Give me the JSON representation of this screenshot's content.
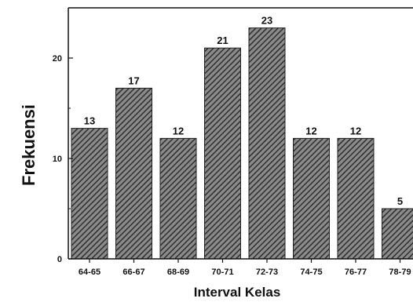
{
  "chart_data": {
    "type": "bar",
    "categories": [
      "64-65",
      "66-67",
      "68-69",
      "70-71",
      "72-73",
      "74-75",
      "76-77",
      "78-79"
    ],
    "values": [
      13,
      17,
      12,
      21,
      23,
      12,
      12,
      5
    ],
    "data_labels": [
      "13",
      "17",
      "12",
      "21",
      "23",
      "12",
      "12",
      "5"
    ],
    "title": "",
    "xlabel": "Interval Kelas",
    "ylabel": "Frekuensi",
    "ylim": [
      0,
      25
    ],
    "yticks": [
      0,
      10,
      20
    ],
    "ytick_labels": [
      "0",
      "10",
      "20"
    ],
    "grid": false,
    "legend": "none",
    "bar_fill": "hatched",
    "colors": {
      "bar_stroke": "#222222",
      "hatch_dark": "#2e2e2e",
      "hatch_light": "#8a8a8a",
      "axis": "#111111"
    }
  }
}
